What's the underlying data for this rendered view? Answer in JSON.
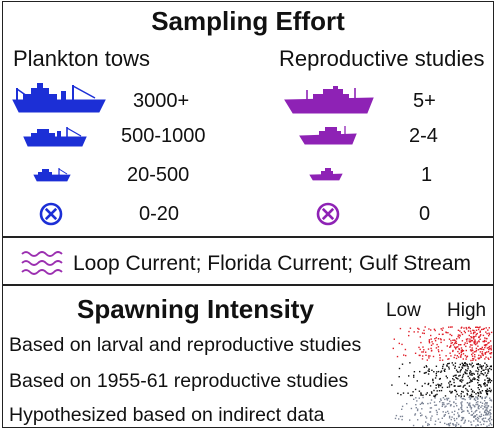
{
  "sampling": {
    "title": "Sampling Effort",
    "plankton": {
      "heading": "Plankton tows",
      "color": "#1c2fd6",
      "rows": [
        {
          "label": "3000+",
          "icon": "large-research-vessel-icon"
        },
        {
          "label": "500-1000",
          "icon": "medium-research-vessel-icon"
        },
        {
          "label": "20-500",
          "icon": "small-research-vessel-icon"
        },
        {
          "label": "0-20",
          "icon": "circled-x-icon"
        }
      ]
    },
    "reproductive": {
      "heading": "Reproductive studies",
      "color": "#8e22b5",
      "rows": [
        {
          "label": "5+",
          "icon": "large-research-vessel-icon"
        },
        {
          "label": "2-4",
          "icon": "medium-research-vessel-icon"
        },
        {
          "label": "1",
          "icon": "small-research-vessel-icon"
        },
        {
          "label": "0",
          "icon": "circled-x-icon"
        }
      ]
    }
  },
  "currents": {
    "label": "Loop Current; Florida Current; Gulf Stream",
    "color": "#9b2fb0",
    "icon": "wavy-lines-icon"
  },
  "spawning": {
    "title": "Spawning Intensity",
    "low_label": "Low",
    "high_label": "High",
    "rows": [
      {
        "label": "Based on larval and reproductive studies",
        "color": "#e0202a"
      },
      {
        "label": "Based on 1955-61 reproductive studies",
        "color": "#111111"
      },
      {
        "label": "Hypothesized based on indirect data",
        "color": "#7d8596"
      }
    ]
  }
}
